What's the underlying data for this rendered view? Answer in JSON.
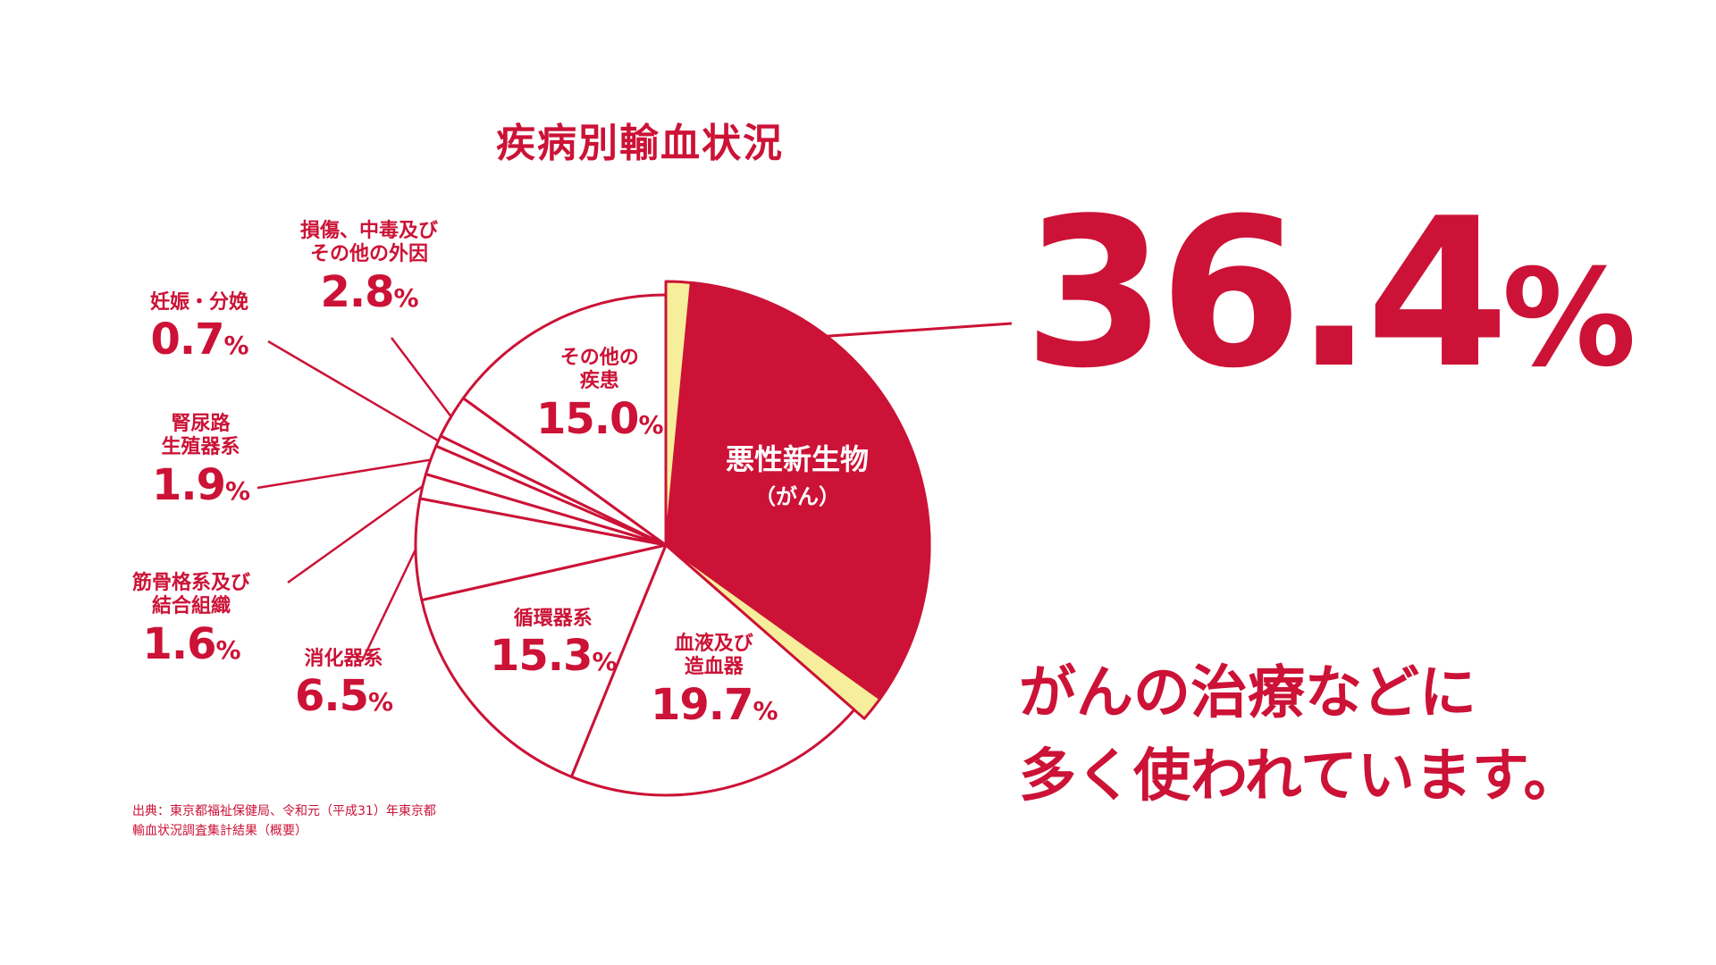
{
  "title": "疾病別輸血状況",
  "percent_suffix": "%",
  "colors": {
    "red": "#cc1236",
    "yellow": "#f6ee9a",
    "white": "#ffffff"
  },
  "chart_data": {
    "type": "pie",
    "title": "疾病別輸血状況",
    "slices": [
      {
        "label": "悪性新生物（がん）",
        "value": 36.4
      },
      {
        "label": "血液及び造血器",
        "value": 19.7
      },
      {
        "label": "循環器系",
        "value": 15.3
      },
      {
        "label": "消化器系",
        "value": 6.5
      },
      {
        "label": "筋骨格系及び結合組織",
        "value": 1.6
      },
      {
        "label": "腎尿路生殖器系",
        "value": 1.9
      },
      {
        "label": "妊娠・分娩",
        "value": 0.7
      },
      {
        "label": "損傷、中毒及びその他の外因",
        "value": 2.8
      },
      {
        "label": "その他の疾患",
        "value": 15.0
      }
    ]
  },
  "labels": {
    "cancer_l1": "悪性新生物",
    "cancer_l2": "（がん）",
    "blood_l1": "血液及び",
    "blood_l2": "造血器",
    "blood_v": "19.7",
    "circ_l1": "循環器系",
    "circ_v": "15.3",
    "digest_l1": "消化器系",
    "digest_v": "6.5",
    "musc_l1": "筋骨格系及び",
    "musc_l2": "結合組織",
    "musc_v": "1.6",
    "renal_l1": "腎尿路",
    "renal_l2": "生殖器系",
    "renal_v": "1.9",
    "preg_l1": "妊娠・分娩",
    "preg_v": "0.7",
    "injury_l1": "損傷、中毒及び",
    "injury_l2": "その他の外因",
    "injury_v": "2.8",
    "other_l1": "その他の",
    "other_l2": "疾患",
    "other_v": "15.0"
  },
  "highlight": {
    "value": "36.4"
  },
  "message": {
    "line1": "がんの治療などに",
    "line2": "多く使われています。"
  },
  "source": {
    "line1": "出典：東京都福祉保健局、令和元（平成31）年東京都",
    "line2": "輸血状況調査集計結果（概要）"
  }
}
